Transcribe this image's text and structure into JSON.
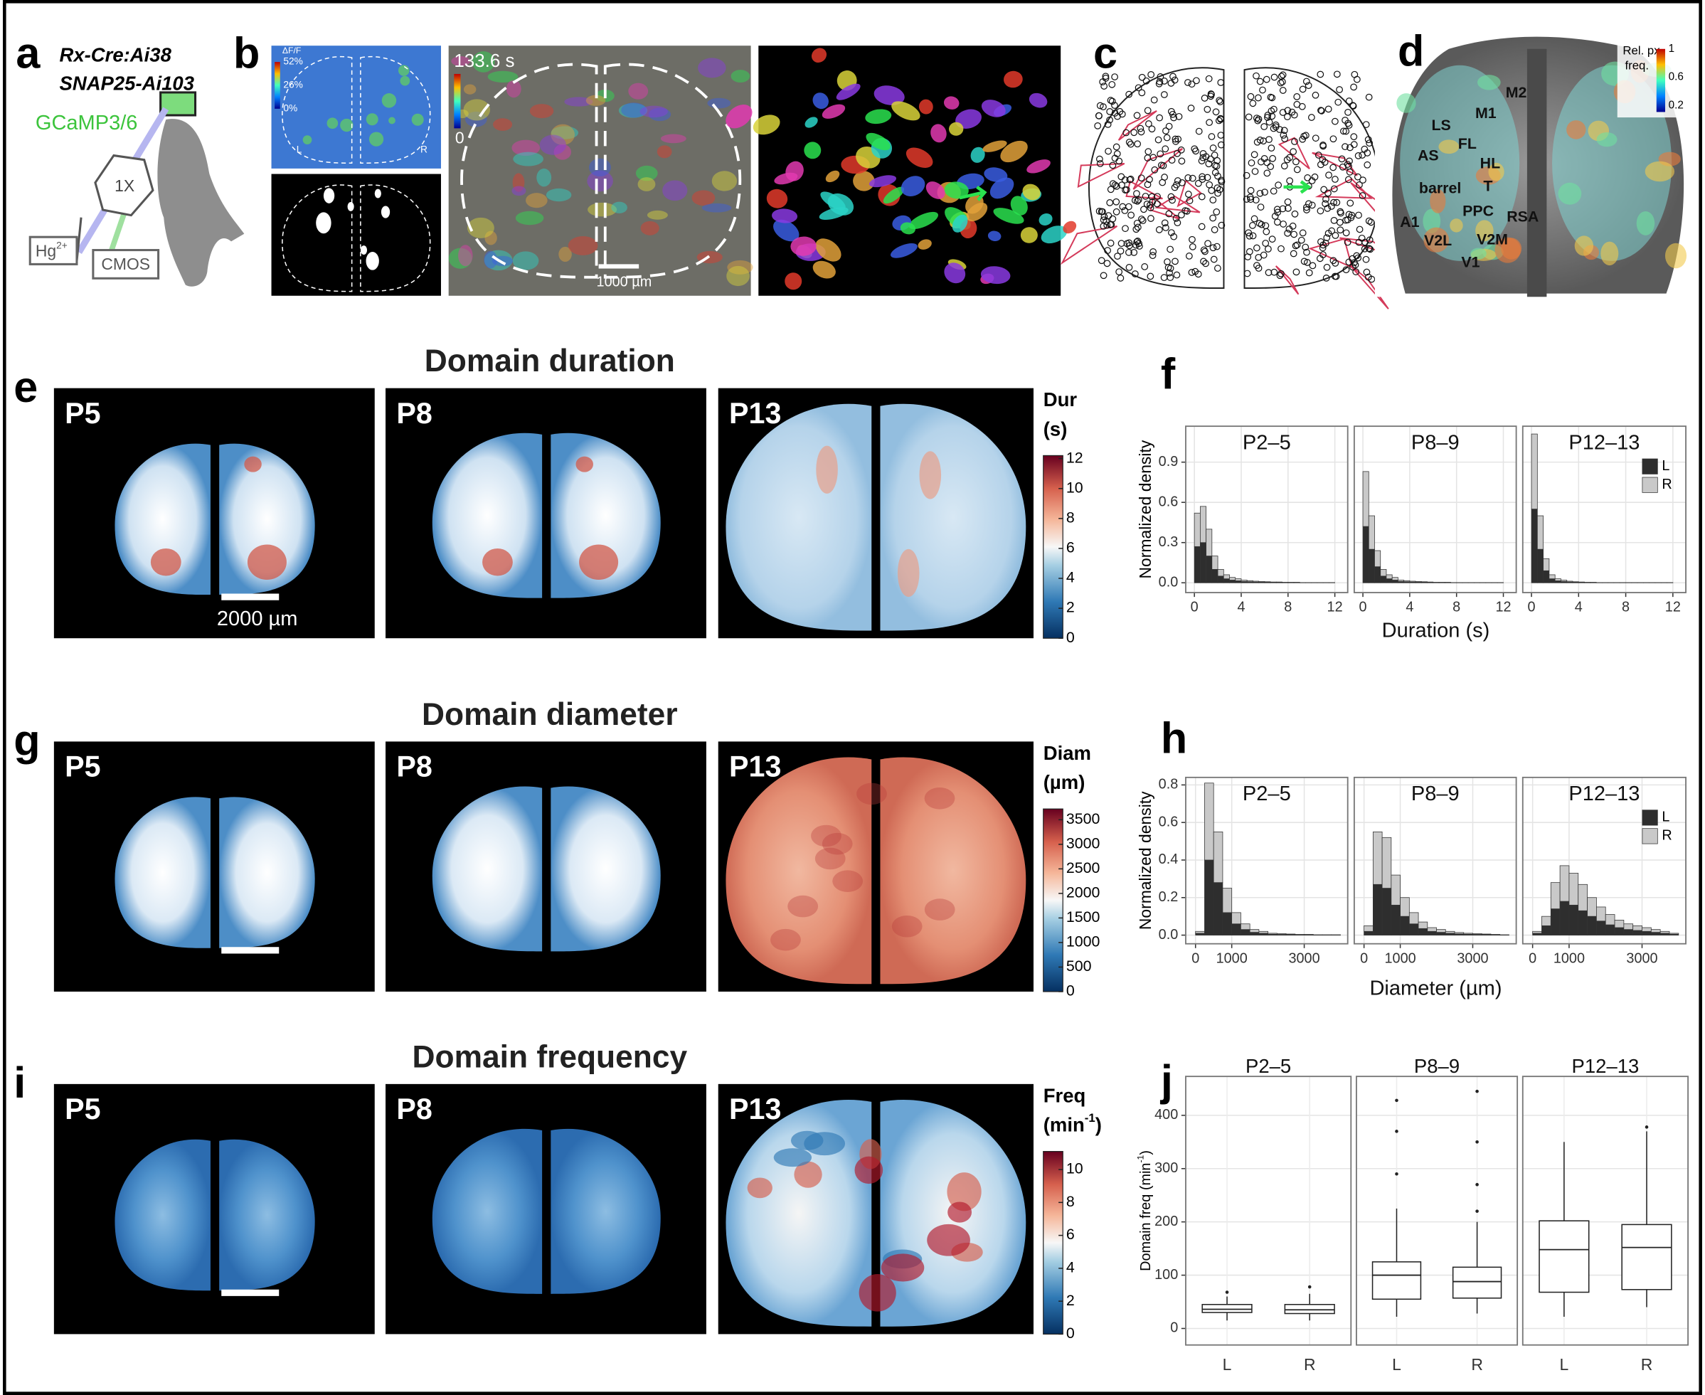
{
  "panels": {
    "a": {
      "label": "a",
      "lines": [
        "Rx-Cre:Ai38",
        "SNAP25-Ai103"
      ],
      "indicator": "GCaMP3/6",
      "objective": "1X",
      "lamp": "Hg",
      "lamp_sup": "2+",
      "camera": "CMOS"
    },
    "b": {
      "label": "b",
      "cbar_title": "ΔF/F",
      "cbar_ticks": [
        {
          "value": 52,
          "label": "52%"
        },
        {
          "value": 26,
          "label": "26%"
        },
        {
          "value": 0,
          "label": "0%"
        }
      ],
      "hemis": [
        "L",
        "R"
      ],
      "time": "133.6 s",
      "time_low": 0,
      "scale_bar": "1000 µm"
    },
    "c": {
      "label": "c"
    },
    "d": {
      "label": "d",
      "regions": [
        "M2",
        "M1",
        "LS",
        "FL",
        "AS",
        "HL",
        "T",
        "barrel",
        "PPC",
        "RSA",
        "A1",
        "V2L",
        "V2M",
        "V1"
      ],
      "cbar_title": [
        "Rel. px",
        "freq."
      ],
      "cbar_lim": [
        0.11,
        1
      ],
      "cbar_ticks": [
        1,
        0.6,
        0.2
      ]
    }
  },
  "maps": [
    {
      "label": "e",
      "title": "Domain duration",
      "ages": [
        "P5",
        "P8",
        "P13"
      ],
      "scale_bar": "2000 µm",
      "cbar": {
        "title": "Dur",
        "unit": "(s)",
        "lim": [
          0,
          12.2
        ],
        "ticks": [
          0,
          2,
          4,
          6,
          8,
          10,
          12
        ]
      }
    },
    {
      "label": "g",
      "title": "Domain diameter",
      "ages": [
        "P5",
        "P8",
        "P13"
      ],
      "cbar": {
        "title": "Diam",
        "unit": "(µm)",
        "lim": [
          0,
          3720
        ],
        "ticks": [
          0,
          500,
          1000,
          1500,
          2000,
          2500,
          3000,
          3500
        ]
      }
    },
    {
      "label": "i",
      "title": "Domain frequency",
      "ages": [
        "P5",
        "P8",
        "P13"
      ],
      "cbar": {
        "title": "Freq",
        "unit": "(min",
        "unit_sup": "-1",
        "unit_end": ")",
        "lim": [
          0,
          11.1
        ],
        "ticks": [
          0,
          2,
          4,
          6,
          8,
          10
        ]
      }
    }
  ],
  "chart_data": [
    {
      "type": "histogram",
      "label": "f",
      "xlabel": "Duration (s)",
      "ylabel": "Normalized density",
      "grid": true,
      "legend": "upper right",
      "xlim": [
        -0.74,
        13.1
      ],
      "ylim": [
        -0.073,
        1.168
      ],
      "xticks": [
        0,
        4,
        8,
        12
      ],
      "yticks": [
        {
          "value": 0,
          "label": "0.0"
        },
        0.3,
        0.6,
        0.9
      ],
      "bins": [
        0,
        0.5,
        1,
        1.5,
        2,
        2.5,
        3,
        3.5,
        4,
        4.5,
        5,
        5.5,
        6,
        6.5,
        7,
        7.5,
        8,
        8.5,
        9,
        9.5,
        10,
        10.5,
        11,
        11.5,
        12
      ],
      "series": [
        {
          "name": "L",
          "color": "#2e2e2e"
        },
        {
          "name": "R",
          "color": "#c9c9c9"
        }
      ],
      "facets": [
        {
          "title": "P2–5",
          "values": [
            [
              0.27,
              0.3,
              0.2,
              0.1,
              0.05,
              0.03,
              0.02,
              0.015,
              0.01,
              0.008,
              0.006,
              0.005,
              0.004,
              0.003,
              0.003,
              0.002,
              0.002,
              0.002,
              0.001,
              0.001,
              0.001,
              0.001,
              0.001,
              0.001
            ],
            [
              0.25,
              0.27,
              0.2,
              0.1,
              0.05,
              0.03,
              0.02,
              0.015,
              0.01,
              0.008,
              0.006,
              0.005,
              0.004,
              0.003,
              0.003,
              0.002,
              0.002,
              0.002,
              0.001,
              0.001,
              0.001,
              0.001,
              0.001,
              0.001
            ]
          ]
        },
        {
          "title": "P8–9",
          "values": [
            [
              0.42,
              0.25,
              0.12,
              0.05,
              0.03,
              0.02,
              0.01,
              0.008,
              0.006,
              0.005,
              0.004,
              0.003,
              0.002,
              0.002,
              0.002,
              0.001,
              0.001,
              0.001,
              0.001,
              0.001,
              0.001,
              0.001,
              0.001,
              0.001
            ],
            [
              0.41,
              0.25,
              0.12,
              0.05,
              0.03,
              0.02,
              0.01,
              0.008,
              0.006,
              0.005,
              0.004,
              0.003,
              0.002,
              0.002,
              0.002,
              0.001,
              0.001,
              0.001,
              0.001,
              0.001,
              0.001,
              0.001,
              0.001,
              0.001
            ]
          ]
        },
        {
          "title": "P12–13",
          "values": [
            [
              0.55,
              0.25,
              0.09,
              0.03,
              0.015,
              0.01,
              0.006,
              0.004,
              0.003,
              0.002,
              0.002,
              0.001,
              0.001,
              0.001,
              0.001,
              0.001,
              0.001,
              0.001,
              0.001,
              0.001,
              0.001,
              0.001,
              0.001,
              0.001
            ],
            [
              0.56,
              0.25,
              0.09,
              0.03,
              0.015,
              0.01,
              0.006,
              0.004,
              0.003,
              0.002,
              0.002,
              0.001,
              0.001,
              0.001,
              0.001,
              0.001,
              0.001,
              0.001,
              0.001,
              0.001,
              0.001,
              0.001,
              0.001,
              0.001
            ]
          ]
        }
      ]
    },
    {
      "type": "histogram",
      "label": "h",
      "xlabel": "Diameter (µm)",
      "ylabel": "Normalized density",
      "grid": true,
      "legend": "upper right",
      "xlim": [
        -270,
        4200
      ],
      "ylim": [
        -0.046,
        0.84
      ],
      "xticks": [
        0,
        1000,
        3000
      ],
      "yticks": [
        {
          "value": 0,
          "label": "0.0"
        },
        0.2,
        0.4,
        0.6,
        0.8
      ],
      "bins": [
        0,
        250,
        500,
        750,
        1000,
        1250,
        1500,
        1750,
        2000,
        2250,
        2500,
        2750,
        3000,
        3250,
        3500,
        3750,
        4000
      ],
      "series": [
        {
          "name": "L",
          "color": "#2e2e2e"
        },
        {
          "name": "R",
          "color": "#c9c9c9"
        }
      ],
      "facets": [
        {
          "title": "P2–5",
          "values": [
            [
              0.01,
              0.4,
              0.28,
              0.12,
              0.06,
              0.03,
              0.015,
              0.01,
              0.005,
              0.004,
              0.003,
              0.002,
              0.002,
              0.001,
              0.001,
              0.001
            ],
            [
              0.01,
              0.41,
              0.27,
              0.13,
              0.06,
              0.03,
              0.015,
              0.01,
              0.005,
              0.004,
              0.003,
              0.002,
              0.002,
              0.001,
              0.001,
              0.001
            ]
          ]
        },
        {
          "title": "P8–9",
          "values": [
            [
              0.02,
              0.27,
              0.25,
              0.16,
              0.1,
              0.06,
              0.035,
              0.02,
              0.015,
              0.01,
              0.007,
              0.005,
              0.004,
              0.003,
              0.002,
              0.001
            ],
            [
              0.03,
              0.28,
              0.27,
              0.16,
              0.1,
              0.06,
              0.035,
              0.02,
              0.015,
              0.01,
              0.007,
              0.005,
              0.004,
              0.003,
              0.002,
              0.001
            ]
          ]
        },
        {
          "title": "P12–13",
          "values": [
            [
              0.01,
              0.05,
              0.14,
              0.18,
              0.16,
              0.13,
              0.1,
              0.075,
              0.055,
              0.04,
              0.03,
              0.025,
              0.02,
              0.015,
              0.01,
              0.005
            ],
            [
              0.01,
              0.05,
              0.14,
              0.19,
              0.17,
              0.14,
              0.1,
              0.075,
              0.055,
              0.04,
              0.03,
              0.025,
              0.02,
              0.015,
              0.01,
              0.005
            ]
          ]
        }
      ]
    },
    {
      "type": "box",
      "label": "j",
      "ylabel": "Domain freq (min",
      "ylabel_sup": "-1",
      "ylabel_end": ")",
      "grid": true,
      "ylim": [
        -31,
        473
      ],
      "yticks": [
        0,
        100,
        200,
        300,
        400
      ],
      "categories": [
        "L",
        "R"
      ],
      "facets": [
        {
          "title": "P2–5",
          "boxes": [
            {
              "whislo": 15,
              "q1": 30,
              "median": 36,
              "q3": 45,
              "whishi": 60,
              "outliers": [
                68
              ]
            },
            {
              "whislo": 15,
              "q1": 28,
              "median": 35,
              "q3": 45,
              "whishi": 65,
              "outliers": [
                78
              ]
            }
          ]
        },
        {
          "title": "P8–9",
          "boxes": [
            {
              "whislo": 22,
              "q1": 55,
              "median": 100,
              "q3": 125,
              "whishi": 225,
              "outliers": [
                290,
                370,
                428
              ]
            },
            {
              "whislo": 28,
              "q1": 57,
              "median": 88,
              "q3": 115,
              "whishi": 200,
              "outliers": [
                220,
                270,
                350,
                445
              ]
            }
          ]
        },
        {
          "title": "P12–13",
          "boxes": [
            {
              "whislo": 22,
              "q1": 68,
              "median": 148,
              "q3": 202,
              "whishi": 350,
              "outliers": []
            },
            {
              "whislo": 40,
              "q1": 73,
              "median": 152,
              "q3": 195,
              "whishi": 370,
              "outliers": [
                378
              ]
            }
          ]
        }
      ]
    }
  ]
}
